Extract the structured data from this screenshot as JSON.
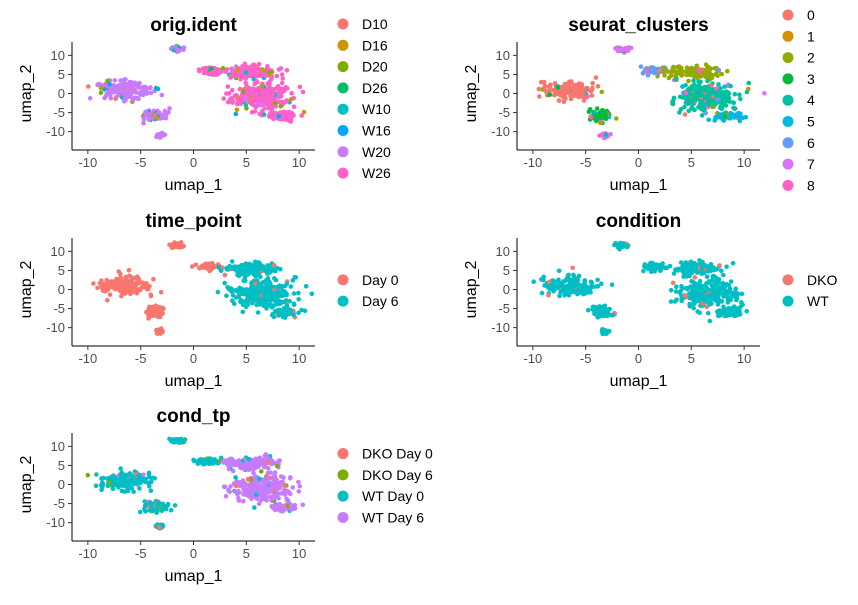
{
  "chart_data": [
    {
      "id": "orig_ident",
      "type": "scatter",
      "title": "orig.ident",
      "xlabel": "umap_1",
      "ylabel": "umap_2",
      "xticks": [
        -10,
        -5,
        0,
        5,
        10
      ],
      "yticks": [
        10,
        5,
        0,
        -5,
        -10
      ],
      "xlim": [
        -11.5,
        11.5
      ],
      "ylim": [
        -13.5,
        13.5
      ],
      "grid": false,
      "legend_position": "right",
      "series": [
        {
          "name": "D10",
          "color": "#F8766D"
        },
        {
          "name": "D16",
          "color": "#CD9600"
        },
        {
          "name": "D20",
          "color": "#7CAE00"
        },
        {
          "name": "D26",
          "color": "#00BE67"
        },
        {
          "name": "W10",
          "color": "#00BFC4"
        },
        {
          "name": "W16",
          "color": "#00A9FF"
        },
        {
          "name": "W20",
          "color": "#C77CFF"
        },
        {
          "name": "W26",
          "color": "#FF61CC"
        }
      ],
      "regions": [
        {
          "label": "left cluster",
          "center": [
            -6.5,
            1.0
          ],
          "spread": [
            2.2,
            2.2
          ],
          "series": "W20"
        },
        {
          "label": "left lower",
          "center": [
            -3.6,
            -5.8
          ],
          "spread": [
            1.0,
            1.4
          ],
          "series": "W20"
        },
        {
          "label": "small upper",
          "center": [
            -1.5,
            11.6
          ],
          "spread": [
            0.6,
            0.6
          ],
          "series": "W20"
        },
        {
          "label": "tiny lower",
          "center": [
            -3.2,
            -11.0
          ],
          "spread": [
            0.3,
            0.5
          ],
          "series": "W20"
        },
        {
          "label": "bridge",
          "center": [
            1.5,
            6.0
          ],
          "spread": [
            1.1,
            0.8
          ],
          "series": "W26"
        },
        {
          "label": "right upper",
          "center": [
            5.5,
            5.5
          ],
          "spread": [
            2.2,
            1.6
          ],
          "series": "W26"
        },
        {
          "label": "right main",
          "center": [
            6.5,
            -1.0
          ],
          "spread": [
            2.6,
            3.2
          ],
          "series": "W26"
        },
        {
          "label": "right lower",
          "center": [
            8.5,
            -6.0
          ],
          "spread": [
            1.2,
            1.0
          ],
          "series": "W26"
        }
      ]
    },
    {
      "id": "seurat_clusters",
      "type": "scatter",
      "title": "seurat_clusters",
      "xlabel": "umap_1",
      "ylabel": "umap_2",
      "xticks": [
        -10,
        -5,
        0,
        5,
        10
      ],
      "yticks": [
        10,
        5,
        0,
        -5,
        -10
      ],
      "xlim": [
        -11.5,
        11.5
      ],
      "ylim": [
        -13.5,
        13.5
      ],
      "grid": false,
      "legend_position": "right",
      "series": [
        {
          "name": "0",
          "color": "#F8766D"
        },
        {
          "name": "1",
          "color": "#D39200"
        },
        {
          "name": "2",
          "color": "#93AA00"
        },
        {
          "name": "3",
          "color": "#00BA38"
        },
        {
          "name": "4",
          "color": "#00C19F"
        },
        {
          "name": "5",
          "color": "#00B9E3"
        },
        {
          "name": "6",
          "color": "#619CFF"
        },
        {
          "name": "7",
          "color": "#DB72FB"
        },
        {
          "name": "8",
          "color": "#FF61C3"
        }
      ],
      "regions": [
        {
          "label": "left cluster",
          "center": [
            -6.5,
            1.0
          ],
          "spread": [
            2.2,
            2.2
          ],
          "series": "0"
        },
        {
          "label": "left lower",
          "center": [
            -3.6,
            -5.8
          ],
          "spread": [
            1.0,
            1.4
          ],
          "series": "3"
        },
        {
          "label": "small upper",
          "center": [
            -1.5,
            11.6
          ],
          "spread": [
            0.6,
            0.6
          ],
          "series": "7"
        },
        {
          "label": "tiny lower",
          "center": [
            -3.2,
            -11.0
          ],
          "spread": [
            0.3,
            0.5
          ],
          "series": "7"
        },
        {
          "label": "bridge",
          "center": [
            1.5,
            6.0
          ],
          "spread": [
            1.1,
            0.8
          ],
          "series": "6"
        },
        {
          "label": "right upper",
          "center": [
            5.5,
            5.5
          ],
          "spread": [
            2.2,
            1.6
          ],
          "series": "2"
        },
        {
          "label": "right main",
          "center": [
            6.5,
            -1.0
          ],
          "spread": [
            2.6,
            3.2
          ],
          "series": "4"
        },
        {
          "label": "right lower",
          "center": [
            8.5,
            -6.0
          ],
          "spread": [
            1.2,
            1.0
          ],
          "series": "5"
        }
      ]
    },
    {
      "id": "time_point",
      "type": "scatter",
      "title": "time_point",
      "xlabel": "umap_1",
      "ylabel": "umap_2",
      "xticks": [
        -10,
        -5,
        0,
        5,
        10
      ],
      "yticks": [
        10,
        5,
        0,
        -5,
        -10
      ],
      "xlim": [
        -11.5,
        11.5
      ],
      "ylim": [
        -13.5,
        13.5
      ],
      "grid": false,
      "legend_position": "right",
      "series": [
        {
          "name": "Day 0",
          "color": "#F8766D"
        },
        {
          "name": "Day 6",
          "color": "#00BFC4"
        }
      ],
      "regions": [
        {
          "label": "left cluster",
          "center": [
            -6.5,
            1.0
          ],
          "spread": [
            2.2,
            2.2
          ],
          "series": "Day 0"
        },
        {
          "label": "left lower",
          "center": [
            -3.6,
            -5.8
          ],
          "spread": [
            1.0,
            1.4
          ],
          "series": "Day 0"
        },
        {
          "label": "small upper",
          "center": [
            -1.5,
            11.6
          ],
          "spread": [
            0.6,
            0.6
          ],
          "series": "Day 0"
        },
        {
          "label": "tiny lower",
          "center": [
            -3.2,
            -11.0
          ],
          "spread": [
            0.3,
            0.5
          ],
          "series": "Day 0"
        },
        {
          "label": "bridge",
          "center": [
            1.5,
            6.0
          ],
          "spread": [
            1.1,
            0.8
          ],
          "series": "Day 0"
        },
        {
          "label": "right upper",
          "center": [
            5.5,
            5.5
          ],
          "spread": [
            2.2,
            1.6
          ],
          "series": "Day 6"
        },
        {
          "label": "right main",
          "center": [
            6.5,
            -1.0
          ],
          "spread": [
            2.6,
            3.2
          ],
          "series": "Day 6"
        },
        {
          "label": "right lower",
          "center": [
            8.5,
            -6.0
          ],
          "spread": [
            1.2,
            1.0
          ],
          "series": "Day 6"
        }
      ]
    },
    {
      "id": "condition",
      "type": "scatter",
      "title": "condition",
      "xlabel": "umap_1",
      "ylabel": "umap_2",
      "xticks": [
        -10,
        -5,
        0,
        5,
        10
      ],
      "yticks": [
        10,
        5,
        0,
        -5,
        -10
      ],
      "xlim": [
        -11.5,
        11.5
      ],
      "ylim": [
        -13.5,
        13.5
      ],
      "grid": false,
      "legend_position": "right",
      "series": [
        {
          "name": "DKO",
          "color": "#F8766D"
        },
        {
          "name": "WT",
          "color": "#00BFC4"
        }
      ],
      "regions": [
        {
          "label": "left cluster",
          "center": [
            -6.5,
            1.0
          ],
          "spread": [
            2.2,
            2.2
          ],
          "series": "WT"
        },
        {
          "label": "left lower",
          "center": [
            -3.6,
            -5.8
          ],
          "spread": [
            1.0,
            1.4
          ],
          "series": "WT"
        },
        {
          "label": "small upper",
          "center": [
            -1.5,
            11.6
          ],
          "spread": [
            0.6,
            0.6
          ],
          "series": "WT"
        },
        {
          "label": "tiny lower",
          "center": [
            -3.2,
            -11.0
          ],
          "spread": [
            0.3,
            0.5
          ],
          "series": "WT"
        },
        {
          "label": "bridge",
          "center": [
            1.5,
            6.0
          ],
          "spread": [
            1.1,
            0.8
          ],
          "series": "WT"
        },
        {
          "label": "right upper",
          "center": [
            5.5,
            5.5
          ],
          "spread": [
            2.2,
            1.6
          ],
          "series": "WT"
        },
        {
          "label": "right main",
          "center": [
            6.5,
            -1.0
          ],
          "spread": [
            2.6,
            3.2
          ],
          "series": "WT"
        },
        {
          "label": "right lower",
          "center": [
            8.5,
            -6.0
          ],
          "spread": [
            1.2,
            1.0
          ],
          "series": "WT"
        }
      ]
    },
    {
      "id": "cond_tp",
      "type": "scatter",
      "title": "cond_tp",
      "xlabel": "umap_1",
      "ylabel": "umap_2",
      "xticks": [
        -10,
        -5,
        0,
        5,
        10
      ],
      "yticks": [
        10,
        5,
        0,
        -5,
        -10
      ],
      "xlim": [
        -11.5,
        11.5
      ],
      "ylim": [
        -13.5,
        13.5
      ],
      "grid": false,
      "legend_position": "right",
      "series": [
        {
          "name": "DKO Day 0",
          "color": "#F8766D"
        },
        {
          "name": "DKO Day 6",
          "color": "#7CAE00"
        },
        {
          "name": "WT Day 0",
          "color": "#00BFC4"
        },
        {
          "name": "WT Day 6",
          "color": "#C77CFF"
        }
      ],
      "regions": [
        {
          "label": "left cluster",
          "center": [
            -6.5,
            1.0
          ],
          "spread": [
            2.2,
            2.2
          ],
          "series": "WT Day 0"
        },
        {
          "label": "left lower",
          "center": [
            -3.6,
            -5.8
          ],
          "spread": [
            1.0,
            1.4
          ],
          "series": "WT Day 0"
        },
        {
          "label": "small upper",
          "center": [
            -1.5,
            11.6
          ],
          "spread": [
            0.6,
            0.6
          ],
          "series": "WT Day 0"
        },
        {
          "label": "tiny lower",
          "center": [
            -3.2,
            -11.0
          ],
          "spread": [
            0.3,
            0.5
          ],
          "series": "WT Day 0"
        },
        {
          "label": "bridge",
          "center": [
            1.5,
            6.0
          ],
          "spread": [
            1.1,
            0.8
          ],
          "series": "WT Day 0"
        },
        {
          "label": "right upper",
          "center": [
            5.5,
            5.5
          ],
          "spread": [
            2.2,
            1.6
          ],
          "series": "WT Day 6"
        },
        {
          "label": "right main",
          "center": [
            6.5,
            -1.0
          ],
          "spread": [
            2.6,
            3.2
          ],
          "series": "WT Day 6"
        },
        {
          "label": "right lower",
          "center": [
            8.5,
            -6.0
          ],
          "spread": [
            1.2,
            1.0
          ],
          "series": "WT Day 6"
        }
      ]
    }
  ]
}
